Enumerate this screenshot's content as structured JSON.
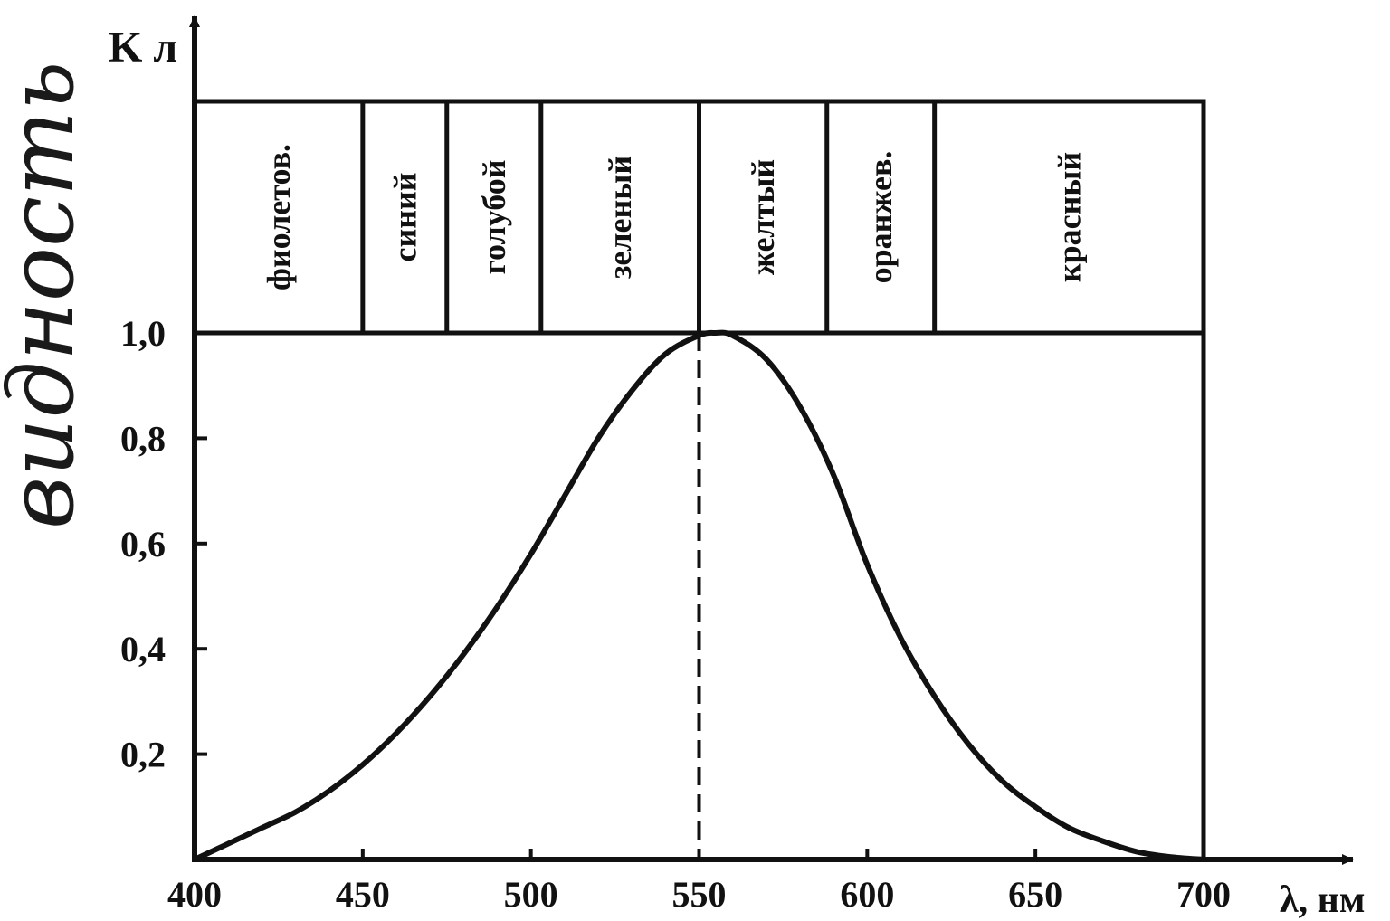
{
  "chart_data": {
    "type": "line",
    "title": "",
    "xlabel": "λ, нм",
    "ylabel": "K л",
    "xlim": [
      400,
      700
    ],
    "ylim": [
      0,
      1.0
    ],
    "x_ticks": [
      400,
      450,
      500,
      550,
      600,
      650,
      700
    ],
    "x_tick_labels": [
      "400",
      "450",
      "500",
      "550",
      "600",
      "650",
      "700"
    ],
    "y_ticks": [
      0.2,
      0.4,
      0.6,
      0.8,
      1.0
    ],
    "y_tick_labels": [
      "0,2",
      "0,4",
      "0,6",
      "0,8",
      "1,0"
    ],
    "grid": false,
    "peak_marker_x": 550,
    "series": [
      {
        "x": [
          400,
          410,
          420,
          430,
          440,
          450,
          460,
          470,
          480,
          490,
          500,
          510,
          520,
          530,
          540,
          550,
          555,
          560,
          570,
          580,
          590,
          600,
          610,
          620,
          630,
          640,
          650,
          660,
          670,
          680,
          690,
          700
        ],
        "y": [
          0.0,
          0.03,
          0.06,
          0.09,
          0.13,
          0.18,
          0.24,
          0.31,
          0.39,
          0.48,
          0.58,
          0.69,
          0.8,
          0.89,
          0.96,
          0.995,
          1.0,
          0.995,
          0.95,
          0.86,
          0.73,
          0.56,
          0.42,
          0.31,
          0.22,
          0.15,
          0.1,
          0.06,
          0.035,
          0.015,
          0.005,
          0.0
        ]
      }
    ],
    "bands": [
      {
        "label": "фиолетов.",
        "from": 400,
        "to": 450
      },
      {
        "label": "синий",
        "from": 450,
        "to": 475
      },
      {
        "label": "голубой",
        "from": 475,
        "to": 503
      },
      {
        "label": "зеленый",
        "from": 503,
        "to": 550
      },
      {
        "label": "желтый",
        "from": 550,
        "to": 588
      },
      {
        "label": "оранжев.",
        "from": 588,
        "to": 620
      },
      {
        "label": "красный",
        "from": 620,
        "to": 700
      }
    ],
    "side_note": "видность"
  }
}
